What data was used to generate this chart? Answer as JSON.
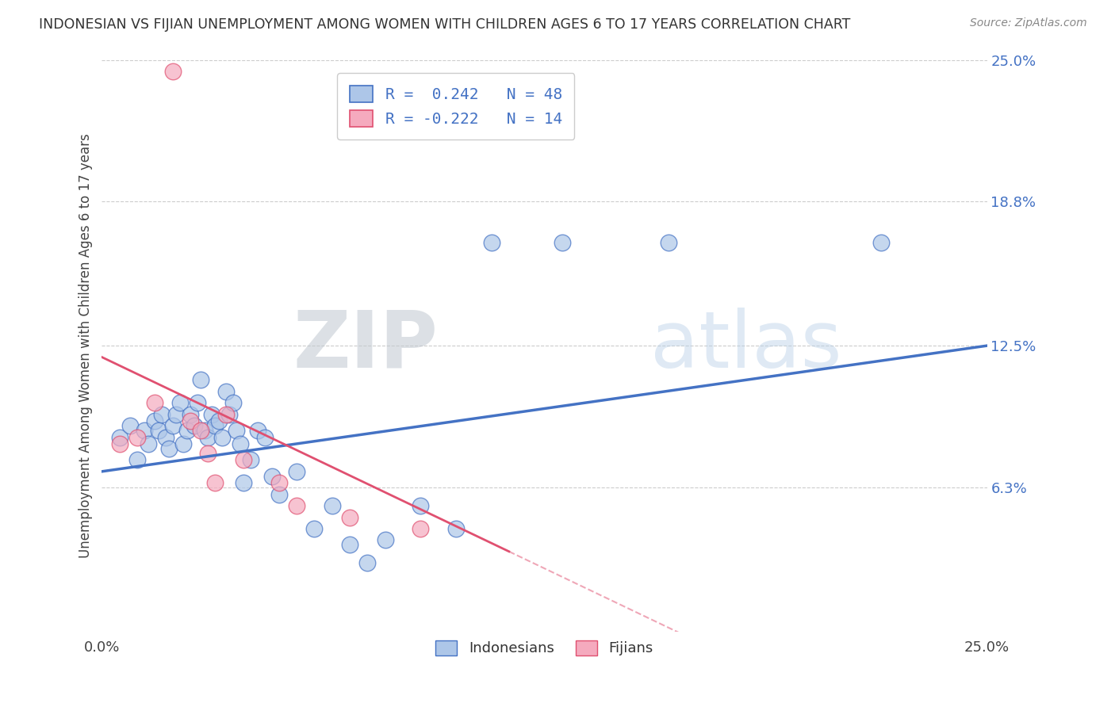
{
  "title": "INDONESIAN VS FIJIAN UNEMPLOYMENT AMONG WOMEN WITH CHILDREN AGES 6 TO 17 YEARS CORRELATION CHART",
  "source": "Source: ZipAtlas.com",
  "ylabel": "Unemployment Among Women with Children Ages 6 to 17 years",
  "legend_labels": [
    "Indonesians",
    "Fijians"
  ],
  "r_indonesian": 0.242,
  "n_indonesian": 48,
  "r_fijian": -0.222,
  "n_fijian": 14,
  "xlim": [
    0.0,
    0.25
  ],
  "ylim": [
    0.0,
    0.25
  ],
  "ytick_right": [
    0.063,
    0.125,
    0.188,
    0.25
  ],
  "ytick_right_labels": [
    "6.3%",
    "12.5%",
    "18.8%",
    "25.0%"
  ],
  "indonesian_color": "#adc6e8",
  "fijian_color": "#f5aabe",
  "indonesian_line_color": "#4472c4",
  "fijian_line_color": "#e05070",
  "watermark_zip": "ZIP",
  "watermark_atlas": "atlas",
  "indonesian_points_x": [
    0.005,
    0.008,
    0.01,
    0.012,
    0.013,
    0.015,
    0.016,
    0.017,
    0.018,
    0.019,
    0.02,
    0.021,
    0.022,
    0.023,
    0.024,
    0.025,
    0.026,
    0.027,
    0.028,
    0.029,
    0.03,
    0.031,
    0.032,
    0.033,
    0.034,
    0.035,
    0.036,
    0.037,
    0.038,
    0.039,
    0.04,
    0.042,
    0.044,
    0.046,
    0.048,
    0.05,
    0.055,
    0.06,
    0.065,
    0.07,
    0.075,
    0.08,
    0.09,
    0.1,
    0.11,
    0.13,
    0.16,
    0.22
  ],
  "indonesian_points_y": [
    0.085,
    0.09,
    0.075,
    0.088,
    0.082,
    0.092,
    0.088,
    0.095,
    0.085,
    0.08,
    0.09,
    0.095,
    0.1,
    0.082,
    0.088,
    0.095,
    0.09,
    0.1,
    0.11,
    0.088,
    0.085,
    0.095,
    0.09,
    0.092,
    0.085,
    0.105,
    0.095,
    0.1,
    0.088,
    0.082,
    0.065,
    0.075,
    0.088,
    0.085,
    0.068,
    0.06,
    0.07,
    0.045,
    0.055,
    0.038,
    0.03,
    0.04,
    0.055,
    0.045,
    0.17,
    0.17,
    0.17,
    0.17
  ],
  "fijian_points_x": [
    0.005,
    0.01,
    0.015,
    0.02,
    0.025,
    0.028,
    0.03,
    0.032,
    0.035,
    0.04,
    0.05,
    0.055,
    0.07,
    0.09
  ],
  "fijian_points_y": [
    0.082,
    0.085,
    0.1,
    0.245,
    0.092,
    0.088,
    0.078,
    0.065,
    0.095,
    0.075,
    0.065,
    0.055,
    0.05,
    0.045
  ],
  "fijian_line_solid_x_end": 0.115,
  "blue_line_y_start": 0.07,
  "blue_line_y_end": 0.125,
  "pink_line_y_start": 0.12,
  "pink_line_y_end": 0.035
}
